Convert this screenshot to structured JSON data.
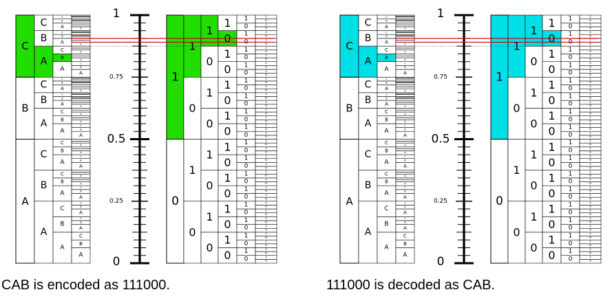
{
  "captions": {
    "left": "CAB is encoded as 111000.",
    "right": "111000 is decoded as CAB."
  },
  "axis_labels": {
    "one": "1",
    "p75": "0.75",
    "half": "0.5",
    "p25": "0.25",
    "zero": "0"
  },
  "symbols": [
    {
      "label": "A",
      "probability": 0.5
    },
    {
      "label": "B",
      "probability": 0.25
    },
    {
      "label": "C",
      "probability": 0.25
    }
  ],
  "message": "CAB",
  "code": "111000",
  "message_interval": [
    0.875,
    0.90625
  ],
  "code_interval": [
    0.890625,
    0.90625
  ],
  "binary_digits": [
    "0",
    "1"
  ],
  "colors": {
    "encode_highlight": "#22dd00",
    "decode_highlight": "#00e0e6",
    "marker_line": "#cc0000",
    "stroke": "#000000"
  }
}
